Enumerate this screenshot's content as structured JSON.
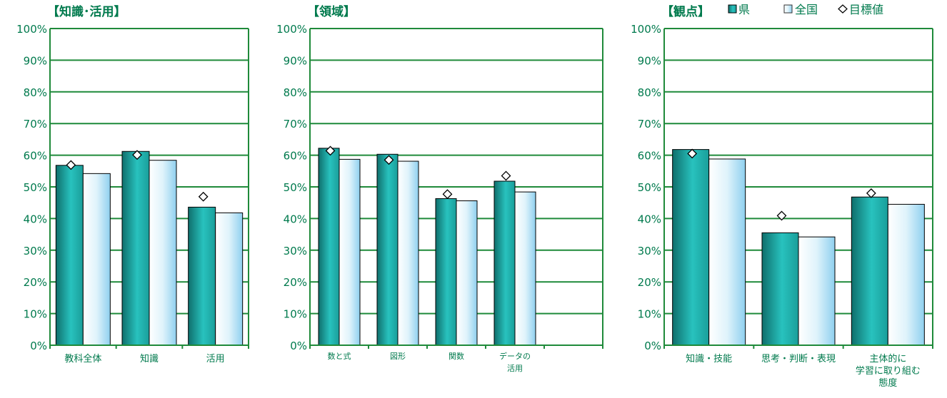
{
  "colors": {
    "axis": "#1f8a3a",
    "text": "#007a4d",
    "ken": "#1fb0ad",
    "zenkoku": "#cdeaf7",
    "diamond": "#000000"
  },
  "legend": {
    "ken": "県",
    "zenkoku": "全国",
    "target": "目標値"
  },
  "chart_data": [
    {
      "type": "bar",
      "title": "【知識･活用】",
      "ylim": [
        0,
        100
      ],
      "y_ticks": [
        "0%",
        "10%",
        "20%",
        "30%",
        "40%",
        "50%",
        "60%",
        "70%",
        "80%",
        "90%",
        "100%"
      ],
      "categories": [
        [
          "教科全体"
        ],
        [
          "知識"
        ],
        [
          "活用"
        ]
      ],
      "series": [
        {
          "name": "県",
          "values": [
            56.8,
            61.2,
            43.6
          ]
        },
        {
          "name": "全国",
          "values": [
            54.2,
            58.4,
            41.8
          ]
        },
        {
          "name": "目標値",
          "values": [
            56.9,
            60.1,
            46.9
          ]
        }
      ]
    },
    {
      "type": "bar",
      "title": "【領域】",
      "ylim": [
        0,
        100
      ],
      "y_ticks": [
        "0%",
        "10%",
        "20%",
        "30%",
        "40%",
        "50%",
        "60%",
        "70%",
        "80%",
        "90%",
        "100%"
      ],
      "categories": [
        [
          "数と式"
        ],
        [
          "図形"
        ],
        [
          "関数"
        ],
        [
          "データの",
          "活用"
        ],
        []
      ],
      "series": [
        {
          "name": "県",
          "values": [
            62.2,
            60.3,
            46.3,
            51.8,
            null
          ]
        },
        {
          "name": "全国",
          "values": [
            58.7,
            58.1,
            45.6,
            48.4,
            null
          ]
        },
        {
          "name": "目標値",
          "values": [
            61.4,
            58.5,
            47.7,
            53.5,
            null
          ]
        }
      ]
    },
    {
      "type": "bar",
      "title": "【観点】",
      "ylim": [
        0,
        100
      ],
      "y_ticks": [
        "0%",
        "10%",
        "20%",
        "30%",
        "40%",
        "50%",
        "60%",
        "70%",
        "80%",
        "90%",
        "100%"
      ],
      "categories": [
        [
          "知識・技能"
        ],
        [
          "思考・判断・表現"
        ],
        [
          "主体的に",
          "学習に取り組む",
          "態度"
        ]
      ],
      "series": [
        {
          "name": "県",
          "values": [
            61.8,
            35.5,
            46.8
          ]
        },
        {
          "name": "全国",
          "values": [
            58.8,
            34.2,
            44.5
          ]
        },
        {
          "name": "目標値",
          "values": [
            60.5,
            40.9,
            48.0
          ]
        }
      ]
    }
  ]
}
